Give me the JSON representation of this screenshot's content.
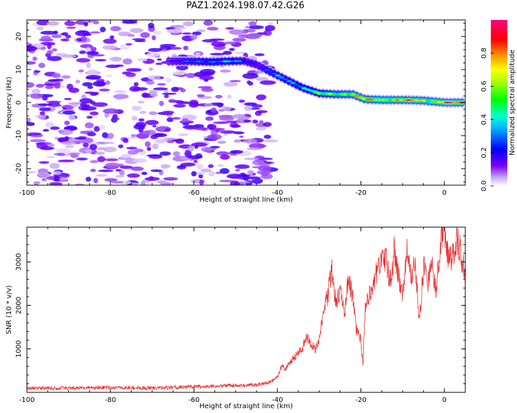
{
  "title": "PAZ1.2024.198.07.42.G26",
  "colors": {
    "snr_line": "#e83030",
    "axis": "#000000",
    "ridge_core": "#ff0000",
    "scatter": "#8a1cf0"
  },
  "chart_data": [
    {
      "type": "heatmap",
      "title": "",
      "xlabel": "Height of straight line (km)",
      "ylabel": "Frequency (Hz)",
      "xlim": [
        -100,
        5
      ],
      "ylim": [
        -25,
        25
      ],
      "xticks": [
        -100,
        -80,
        -60,
        -40,
        -20,
        0
      ],
      "xtick_labels": [
        "-100",
        "-80",
        "-60",
        "-40",
        "-20",
        "0"
      ],
      "yticks": [
        -20,
        -10,
        0,
        10,
        20
      ],
      "ytick_labels": [
        "-20",
        "-10",
        "0",
        "10",
        "20"
      ],
      "grid": false,
      "colorbar": {
        "label": "Normalized spectral amplitude",
        "range": [
          0,
          1
        ],
        "ticks": [
          0.0,
          0.2,
          0.4,
          0.6,
          0.8
        ],
        "tick_labels": [
          "0.0",
          "0.2",
          "0.4",
          "0.6",
          "0.8"
        ],
        "colormap": "rainbow (white-violet-blue-cyan-green-yellow-red-magenta)"
      },
      "ridge": {
        "description": "dominant frequency trace",
        "x": [
          -66,
          -60,
          -56,
          -52,
          -48,
          -45,
          -42,
          -38,
          -34,
          -30,
          -26,
          -22,
          -19,
          -15,
          -10,
          -5,
          0,
          5
        ],
        "y": [
          12.5,
          12.5,
          12.3,
          12.5,
          12.6,
          11.5,
          9.5,
          7.0,
          4.5,
          2.8,
          2.5,
          2.5,
          1.0,
          0.8,
          0.8,
          0.6,
          0.0,
          0.0
        ],
        "amplitude": [
          0.25,
          0.35,
          0.45,
          0.45,
          0.35,
          0.3,
          0.35,
          0.45,
          0.55,
          0.65,
          0.8,
          0.85,
          0.9,
          0.95,
          0.95,
          0.95,
          1.0,
          1.0
        ]
      },
      "scatter_region": {
        "description": "low-amplitude noise blobs",
        "x_range": [
          -100,
          -41
        ],
        "y_range": [
          -25,
          25
        ],
        "amplitude_range": [
          0.05,
          0.2
        ]
      }
    },
    {
      "type": "line",
      "title": "",
      "xlabel": "Height of straight line (km)",
      "ylabel": "SNR (10 * v/v)",
      "xlim": [
        -100,
        5
      ],
      "ylim": [
        0,
        3800
      ],
      "xticks": [
        -100,
        -80,
        -60,
        -40,
        -20,
        0
      ],
      "xtick_labels": [
        "-100",
        "-80",
        "-60",
        "-40",
        "-20",
        "0"
      ],
      "yticks": [
        1000,
        2000,
        3000
      ],
      "ytick_labels": [
        "1000",
        "2000",
        "3000"
      ],
      "grid": false,
      "series": [
        {
          "x": [
            -100,
            -90,
            -80,
            -70,
            -60,
            -50,
            -45,
            -42,
            -40,
            -39,
            -38,
            -36,
            -34,
            -33,
            -32,
            -31,
            -30,
            -29,
            -28,
            -27,
            -26,
            -25,
            -24,
            -23,
            -22,
            -21,
            -20,
            -19.5,
            -19,
            -18,
            -17,
            -16,
            -15,
            -14,
            -13,
            -12,
            -11,
            -10,
            -9,
            -8,
            -7,
            -6,
            -5,
            -4,
            -3,
            -2,
            -1,
            0,
            1,
            2,
            3,
            4,
            5
          ],
          "y": [
            90,
            100,
            110,
            100,
            130,
            160,
            170,
            220,
            350,
            600,
            550,
            800,
            1000,
            1300,
            1100,
            1000,
            1200,
            1800,
            2200,
            2800,
            2100,
            2300,
            1800,
            2600,
            2200,
            1400,
            1200,
            600,
            1900,
            2200,
            2600,
            2800,
            3000,
            3100,
            2500,
            3300,
            2700,
            2200,
            3400,
            2600,
            3000,
            1600,
            2900,
            2500,
            2900,
            2300,
            3300,
            3800,
            3000,
            3100,
            3500,
            3200,
            2600
          ]
        }
      ]
    }
  ]
}
